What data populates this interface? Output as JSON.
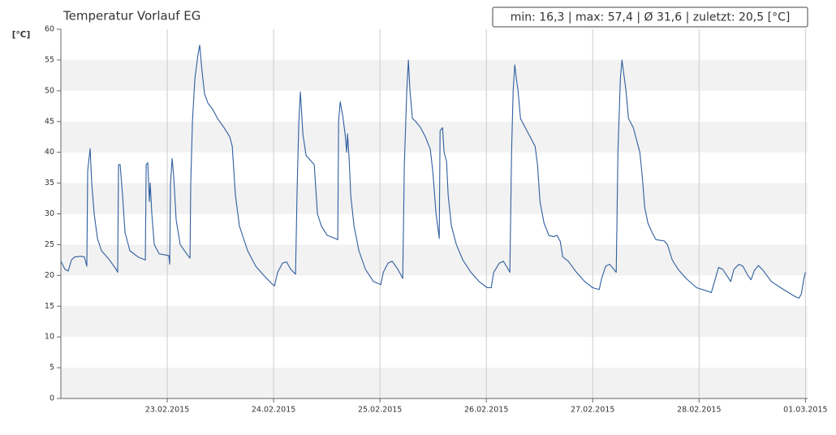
{
  "chart_data": {
    "type": "line",
    "title": "Temperatur Vorlauf EG",
    "summary": "min: 16,3 | max: 57,4 | Ø 31,6 | zuletzt: 20,5 [°C]",
    "y_label": "[°C]",
    "xlim": [
      0,
      7.02
    ],
    "xticks": [
      {
        "value": 1,
        "label": "23.02.2015"
      },
      {
        "value": 2,
        "label": "24.02.2015"
      },
      {
        "value": 3,
        "label": "25.02.2015"
      },
      {
        "value": 4,
        "label": "26.02.2015"
      },
      {
        "value": 5,
        "label": "27.02.2015"
      },
      {
        "value": 6,
        "label": "28.02.2015"
      },
      {
        "value": 7,
        "label": "01.03.2015"
      }
    ],
    "ylim": [
      0,
      60
    ],
    "yticks": [
      0,
      5,
      10,
      15,
      20,
      25,
      30,
      35,
      40,
      45,
      50,
      55,
      60
    ],
    "grid": true,
    "color": "#2f5e9e",
    "x": [
      0.0,
      0.038,
      0.069,
      0.099,
      0.13,
      0.191,
      0.221,
      0.244,
      0.252,
      0.275,
      0.29,
      0.313,
      0.344,
      0.382,
      0.458,
      0.519,
      0.534,
      0.542,
      0.557,
      0.58,
      0.603,
      0.649,
      0.725,
      0.794,
      0.802,
      0.817,
      0.832,
      0.84,
      0.855,
      0.878,
      0.924,
      0.992,
      1.015,
      1.023,
      1.031,
      1.046,
      1.061,
      1.084,
      1.122,
      1.183,
      1.214,
      1.221,
      1.237,
      1.26,
      1.29,
      1.305,
      1.328,
      1.351,
      1.382,
      1.427,
      1.473,
      1.534,
      1.588,
      1.611,
      1.641,
      1.679,
      1.756,
      1.832,
      1.908,
      1.992,
      2.008,
      2.038,
      2.084,
      2.122,
      2.16,
      2.206,
      2.221,
      2.237,
      2.252,
      2.275,
      2.305,
      2.382,
      2.412,
      2.45,
      2.504,
      2.58,
      2.603,
      2.611,
      2.626,
      2.649,
      2.672,
      2.687,
      2.695,
      2.71,
      2.725,
      2.756,
      2.802,
      2.863,
      2.939,
      3.008,
      3.031,
      3.076,
      3.115,
      3.168,
      3.214,
      3.229,
      3.252,
      3.267,
      3.282,
      3.305,
      3.336,
      3.382,
      3.427,
      3.473,
      3.496,
      3.527,
      3.55,
      3.557,
      3.565,
      3.588,
      3.603,
      3.626,
      3.641,
      3.672,
      3.718,
      3.779,
      3.855,
      3.931,
      4.008,
      4.046,
      4.069,
      4.122,
      4.16,
      4.206,
      4.221,
      4.237,
      4.252,
      4.267,
      4.282,
      4.298,
      4.321,
      4.366,
      4.412,
      4.458,
      4.481,
      4.504,
      4.542,
      4.588,
      4.634,
      4.664,
      4.695,
      4.718,
      4.771,
      4.847,
      4.924,
      5.0,
      5.061,
      5.084,
      5.122,
      5.16,
      5.198,
      5.221,
      5.237,
      5.26,
      5.275,
      5.29,
      5.313,
      5.336,
      5.382,
      5.412,
      5.443,
      5.466,
      5.489,
      5.519,
      5.557,
      5.595,
      5.672,
      5.702,
      5.748,
      5.802,
      5.878,
      5.977,
      6.069,
      6.115,
      6.145,
      6.183,
      6.221,
      6.267,
      6.298,
      6.328,
      6.374,
      6.412,
      6.458,
      6.489,
      6.519,
      6.557,
      6.603,
      6.679,
      6.794,
      6.908,
      6.939,
      6.962,
      6.985,
      7.0
    ],
    "values": [
      22.3,
      21.0,
      20.7,
      22.5,
      23.0,
      23.1,
      23.0,
      21.5,
      37,
      40.6,
      35,
      30,
      26,
      24,
      22.5,
      21,
      20.5,
      38,
      38,
      33,
      27,
      24,
      23,
      22.5,
      38,
      38.3,
      32,
      35,
      30,
      25,
      23.5,
      23.3,
      23.2,
      21.8,
      35,
      39,
      36,
      29,
      25,
      23.5,
      22.8,
      35,
      45,
      52,
      56,
      57.4,
      53,
      49.5,
      48,
      47,
      45.5,
      44,
      42.5,
      41,
      33,
      28,
      24,
      21.5,
      20,
      18.5,
      18.3,
      20.5,
      22,
      22.2,
      21,
      20.2,
      34,
      45,
      49.8,
      43,
      39.5,
      38,
      30,
      28,
      26.5,
      26,
      25.8,
      45,
      48.2,
      46,
      43,
      40,
      43,
      39,
      33,
      28,
      24,
      21,
      19,
      18.5,
      20.5,
      22,
      22.3,
      21,
      19.5,
      38,
      50,
      55,
      50,
      45.5,
      45,
      44,
      42.5,
      40.5,
      37,
      30,
      27,
      26,
      43.5,
      44,
      40,
      38.5,
      33,
      28,
      25,
      22.5,
      20.5,
      19,
      18,
      18,
      20.5,
      22,
      22.3,
      21,
      20.5,
      40,
      50,
      54.2,
      52,
      50,
      45.5,
      44,
      42.5,
      41,
      38,
      32,
      28.5,
      26.5,
      26.3,
      26.5,
      25.5,
      23,
      22.3,
      20.5,
      19,
      18,
      17.7,
      19.5,
      21.5,
      21.8,
      21,
      20.5,
      40,
      52,
      55,
      53,
      50,
      45.5,
      44,
      42,
      40,
      36,
      31,
      28.5,
      27,
      25.8,
      25.6,
      25,
      22.5,
      21,
      19.5,
      18,
      17.5,
      17.2,
      19,
      21.3,
      21,
      19.8,
      19,
      21,
      21.8,
      21.5,
      20,
      19.3,
      20.8,
      21.6,
      20.8,
      19,
      17.7,
      16.5,
      16.3,
      17,
      19.5,
      20.5
    ]
  }
}
